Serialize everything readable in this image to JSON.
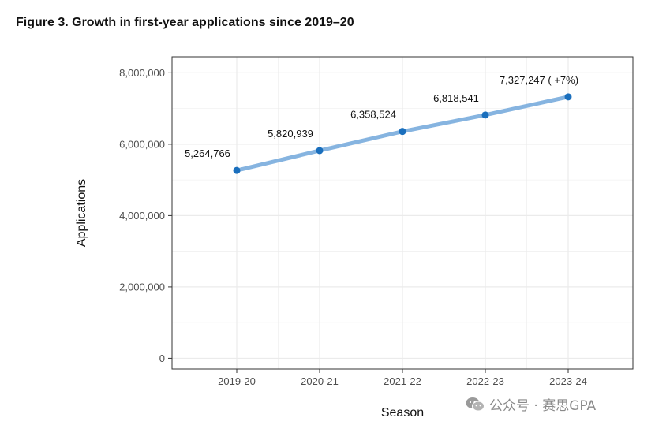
{
  "title": "Figure 3. Growth in first-year applications since 2019–20",
  "watermark": "公众号 · 赛思GPA",
  "chart_data": {
    "type": "line",
    "title": "",
    "xlabel": "Season",
    "ylabel": "Applications",
    "categories": [
      "2019-20",
      "2020-21",
      "2021-22",
      "2022-23",
      "2023-24"
    ],
    "values": [
      5264766,
      5820939,
      6358524,
      6818541,
      7327247
    ],
    "data_labels": [
      "5,264,766",
      "5,820,939",
      "6,358,524",
      "6,818,541",
      "7,327,247 ( +7%)"
    ],
    "yticks": [
      0,
      2000000,
      4000000,
      6000000,
      8000000
    ],
    "ytick_labels": [
      "0",
      "2,000,000",
      "4,000,000",
      "6,000,000",
      "8,000,000"
    ],
    "ylim": [
      -300000,
      8450000
    ],
    "grid": true,
    "colors": {
      "line": "#86b4e0",
      "point": "#1a6fbd",
      "grid": "#ebebeb",
      "panel_border": "#333333"
    }
  }
}
